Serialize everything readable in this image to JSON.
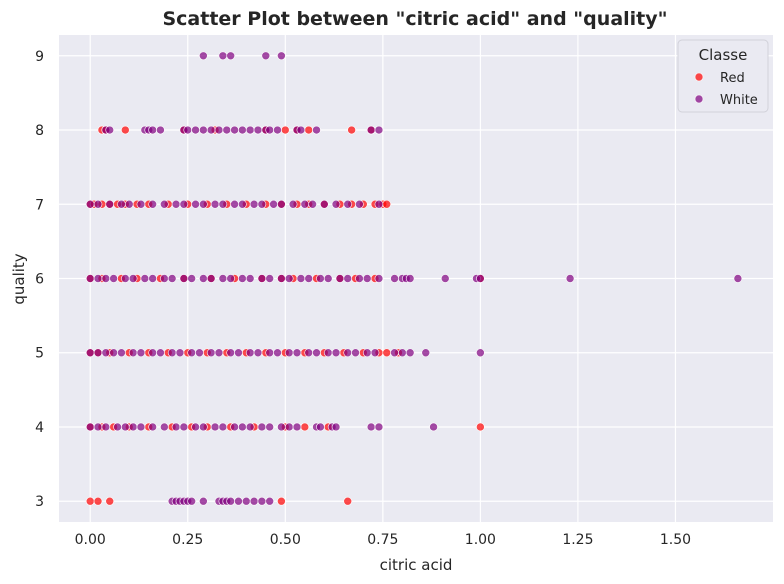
{
  "chart_data": {
    "type": "scatter",
    "title": "Scatter Plot between \"citric acid\" and \"quality\"",
    "xlabel": "citric acid",
    "ylabel": "quality",
    "xlim": [
      -0.08,
      1.75
    ],
    "ylim": [
      2.72,
      9.28
    ],
    "xticks": [
      0.0,
      0.25,
      0.5,
      0.75,
      1.0,
      1.25,
      1.5
    ],
    "xtick_labels": [
      "0.00",
      "0.25",
      "0.50",
      "0.75",
      "1.00",
      "1.25",
      "1.50"
    ],
    "yticks": [
      3,
      4,
      5,
      6,
      7,
      8,
      9
    ],
    "ytick_labels": [
      "3",
      "4",
      "5",
      "6",
      "7",
      "8",
      "9"
    ],
    "grid": true,
    "legend": {
      "title": "Classe",
      "position": "top-right"
    },
    "series": [
      {
        "name": "Red",
        "color": "#ff0000",
        "points": [
          [
            0.0,
            3
          ],
          [
            0.02,
            3
          ],
          [
            0.05,
            3
          ],
          [
            0.49,
            3
          ],
          [
            0.66,
            3
          ],
          [
            0.0,
            4
          ],
          [
            0.03,
            4
          ],
          [
            0.06,
            4
          ],
          [
            0.1,
            4
          ],
          [
            0.15,
            4
          ],
          [
            0.21,
            4
          ],
          [
            0.26,
            4
          ],
          [
            0.3,
            4
          ],
          [
            0.36,
            4
          ],
          [
            0.42,
            4
          ],
          [
            0.5,
            4
          ],
          [
            0.55,
            4
          ],
          [
            0.61,
            4
          ],
          [
            1.0,
            4
          ],
          [
            0.0,
            5
          ],
          [
            0.02,
            5
          ],
          [
            0.05,
            5
          ],
          [
            0.1,
            5
          ],
          [
            0.15,
            5
          ],
          [
            0.2,
            5
          ],
          [
            0.25,
            5
          ],
          [
            0.3,
            5
          ],
          [
            0.35,
            5
          ],
          [
            0.4,
            5
          ],
          [
            0.45,
            5
          ],
          [
            0.5,
            5
          ],
          [
            0.55,
            5
          ],
          [
            0.6,
            5
          ],
          [
            0.65,
            5
          ],
          [
            0.7,
            5
          ],
          [
            0.74,
            5
          ],
          [
            0.76,
            5
          ],
          [
            0.79,
            5
          ],
          [
            0.0,
            6
          ],
          [
            0.03,
            6
          ],
          [
            0.08,
            6
          ],
          [
            0.12,
            6
          ],
          [
            0.18,
            6
          ],
          [
            0.24,
            6
          ],
          [
            0.31,
            6
          ],
          [
            0.37,
            6
          ],
          [
            0.44,
            6
          ],
          [
            0.49,
            6
          ],
          [
            0.52,
            6
          ],
          [
            0.58,
            6
          ],
          [
            0.64,
            6
          ],
          [
            0.68,
            6
          ],
          [
            0.73,
            6
          ],
          [
            1.0,
            6
          ],
          [
            0.0,
            7
          ],
          [
            0.01,
            7
          ],
          [
            0.03,
            7
          ],
          [
            0.05,
            7
          ],
          [
            0.07,
            7
          ],
          [
            0.09,
            7
          ],
          [
            0.12,
            7
          ],
          [
            0.15,
            7
          ],
          [
            0.2,
            7
          ],
          [
            0.25,
            7
          ],
          [
            0.3,
            7
          ],
          [
            0.35,
            7
          ],
          [
            0.4,
            7
          ],
          [
            0.45,
            7
          ],
          [
            0.49,
            7
          ],
          [
            0.53,
            7
          ],
          [
            0.56,
            7
          ],
          [
            0.6,
            7
          ],
          [
            0.64,
            7
          ],
          [
            0.67,
            7
          ],
          [
            0.7,
            7
          ],
          [
            0.73,
            7
          ],
          [
            0.75,
            7
          ],
          [
            0.76,
            7
          ],
          [
            0.03,
            8
          ],
          [
            0.04,
            8
          ],
          [
            0.09,
            8
          ],
          [
            0.24,
            8
          ],
          [
            0.32,
            8
          ],
          [
            0.45,
            8
          ],
          [
            0.5,
            8
          ],
          [
            0.53,
            8
          ],
          [
            0.56,
            8
          ],
          [
            0.67,
            8
          ],
          [
            0.72,
            8
          ]
        ]
      },
      {
        "name": "White",
        "color": "#800080",
        "points": [
          [
            0.21,
            3
          ],
          [
            0.22,
            3
          ],
          [
            0.23,
            3
          ],
          [
            0.24,
            3
          ],
          [
            0.25,
            3
          ],
          [
            0.26,
            3
          ],
          [
            0.29,
            3
          ],
          [
            0.33,
            3
          ],
          [
            0.34,
            3
          ],
          [
            0.35,
            3
          ],
          [
            0.36,
            3
          ],
          [
            0.38,
            3
          ],
          [
            0.4,
            3
          ],
          [
            0.42,
            3
          ],
          [
            0.44,
            3
          ],
          [
            0.46,
            3
          ],
          [
            0.0,
            4
          ],
          [
            0.02,
            4
          ],
          [
            0.04,
            4
          ],
          [
            0.07,
            4
          ],
          [
            0.09,
            4
          ],
          [
            0.11,
            4
          ],
          [
            0.13,
            4
          ],
          [
            0.16,
            4
          ],
          [
            0.19,
            4
          ],
          [
            0.22,
            4
          ],
          [
            0.24,
            4
          ],
          [
            0.27,
            4
          ],
          [
            0.29,
            4
          ],
          [
            0.32,
            4
          ],
          [
            0.34,
            4
          ],
          [
            0.37,
            4
          ],
          [
            0.39,
            4
          ],
          [
            0.41,
            4
          ],
          [
            0.44,
            4
          ],
          [
            0.46,
            4
          ],
          [
            0.49,
            4
          ],
          [
            0.51,
            4
          ],
          [
            0.53,
            4
          ],
          [
            0.58,
            4
          ],
          [
            0.59,
            4
          ],
          [
            0.62,
            4
          ],
          [
            0.63,
            4
          ],
          [
            0.72,
            4
          ],
          [
            0.74,
            4
          ],
          [
            0.88,
            4
          ],
          [
            0.0,
            5
          ],
          [
            0.02,
            5
          ],
          [
            0.04,
            5
          ],
          [
            0.06,
            5
          ],
          [
            0.08,
            5
          ],
          [
            0.11,
            5
          ],
          [
            0.13,
            5
          ],
          [
            0.16,
            5
          ],
          [
            0.18,
            5
          ],
          [
            0.21,
            5
          ],
          [
            0.23,
            5
          ],
          [
            0.26,
            5
          ],
          [
            0.28,
            5
          ],
          [
            0.31,
            5
          ],
          [
            0.33,
            5
          ],
          [
            0.36,
            5
          ],
          [
            0.38,
            5
          ],
          [
            0.41,
            5
          ],
          [
            0.43,
            5
          ],
          [
            0.46,
            5
          ],
          [
            0.48,
            5
          ],
          [
            0.51,
            5
          ],
          [
            0.53,
            5
          ],
          [
            0.56,
            5
          ],
          [
            0.58,
            5
          ],
          [
            0.61,
            5
          ],
          [
            0.63,
            5
          ],
          [
            0.66,
            5
          ],
          [
            0.68,
            5
          ],
          [
            0.71,
            5
          ],
          [
            0.73,
            5
          ],
          [
            0.78,
            5
          ],
          [
            0.8,
            5
          ],
          [
            0.82,
            5
          ],
          [
            0.86,
            5
          ],
          [
            1.0,
            5
          ],
          [
            0.0,
            6
          ],
          [
            0.02,
            6
          ],
          [
            0.04,
            6
          ],
          [
            0.06,
            6
          ],
          [
            0.09,
            6
          ],
          [
            0.11,
            6
          ],
          [
            0.14,
            6
          ],
          [
            0.16,
            6
          ],
          [
            0.19,
            6
          ],
          [
            0.21,
            6
          ],
          [
            0.24,
            6
          ],
          [
            0.26,
            6
          ],
          [
            0.29,
            6
          ],
          [
            0.31,
            6
          ],
          [
            0.34,
            6
          ],
          [
            0.36,
            6
          ],
          [
            0.39,
            6
          ],
          [
            0.41,
            6
          ],
          [
            0.44,
            6
          ],
          [
            0.46,
            6
          ],
          [
            0.49,
            6
          ],
          [
            0.51,
            6
          ],
          [
            0.54,
            6
          ],
          [
            0.56,
            6
          ],
          [
            0.59,
            6
          ],
          [
            0.61,
            6
          ],
          [
            0.64,
            6
          ],
          [
            0.66,
            6
          ],
          [
            0.69,
            6
          ],
          [
            0.71,
            6
          ],
          [
            0.74,
            6
          ],
          [
            0.78,
            6
          ],
          [
            0.8,
            6
          ],
          [
            0.81,
            6
          ],
          [
            0.82,
            6
          ],
          [
            0.91,
            6
          ],
          [
            0.99,
            6
          ],
          [
            1.0,
            6
          ],
          [
            1.23,
            6
          ],
          [
            1.66,
            6
          ],
          [
            0.0,
            7
          ],
          [
            0.02,
            7
          ],
          [
            0.05,
            7
          ],
          [
            0.08,
            7
          ],
          [
            0.1,
            7
          ],
          [
            0.13,
            7
          ],
          [
            0.16,
            7
          ],
          [
            0.19,
            7
          ],
          [
            0.22,
            7
          ],
          [
            0.24,
            7
          ],
          [
            0.27,
            7
          ],
          [
            0.29,
            7
          ],
          [
            0.32,
            7
          ],
          [
            0.34,
            7
          ],
          [
            0.37,
            7
          ],
          [
            0.39,
            7
          ],
          [
            0.42,
            7
          ],
          [
            0.44,
            7
          ],
          [
            0.47,
            7
          ],
          [
            0.49,
            7
          ],
          [
            0.52,
            7
          ],
          [
            0.55,
            7
          ],
          [
            0.57,
            7
          ],
          [
            0.6,
            7
          ],
          [
            0.63,
            7
          ],
          [
            0.66,
            7
          ],
          [
            0.69,
            7
          ],
          [
            0.74,
            7
          ],
          [
            0.04,
            8
          ],
          [
            0.05,
            8
          ],
          [
            0.14,
            8
          ],
          [
            0.15,
            8
          ],
          [
            0.16,
            8
          ],
          [
            0.18,
            8
          ],
          [
            0.24,
            8
          ],
          [
            0.25,
            8
          ],
          [
            0.27,
            8
          ],
          [
            0.29,
            8
          ],
          [
            0.31,
            8
          ],
          [
            0.33,
            8
          ],
          [
            0.35,
            8
          ],
          [
            0.37,
            8
          ],
          [
            0.39,
            8
          ],
          [
            0.41,
            8
          ],
          [
            0.43,
            8
          ],
          [
            0.45,
            8
          ],
          [
            0.46,
            8
          ],
          [
            0.48,
            8
          ],
          [
            0.53,
            8
          ],
          [
            0.54,
            8
          ],
          [
            0.58,
            8
          ],
          [
            0.72,
            8
          ],
          [
            0.74,
            8
          ],
          [
            0.29,
            9
          ],
          [
            0.34,
            9
          ],
          [
            0.36,
            9
          ],
          [
            0.45,
            9
          ],
          [
            0.49,
            9
          ]
        ]
      }
    ]
  }
}
